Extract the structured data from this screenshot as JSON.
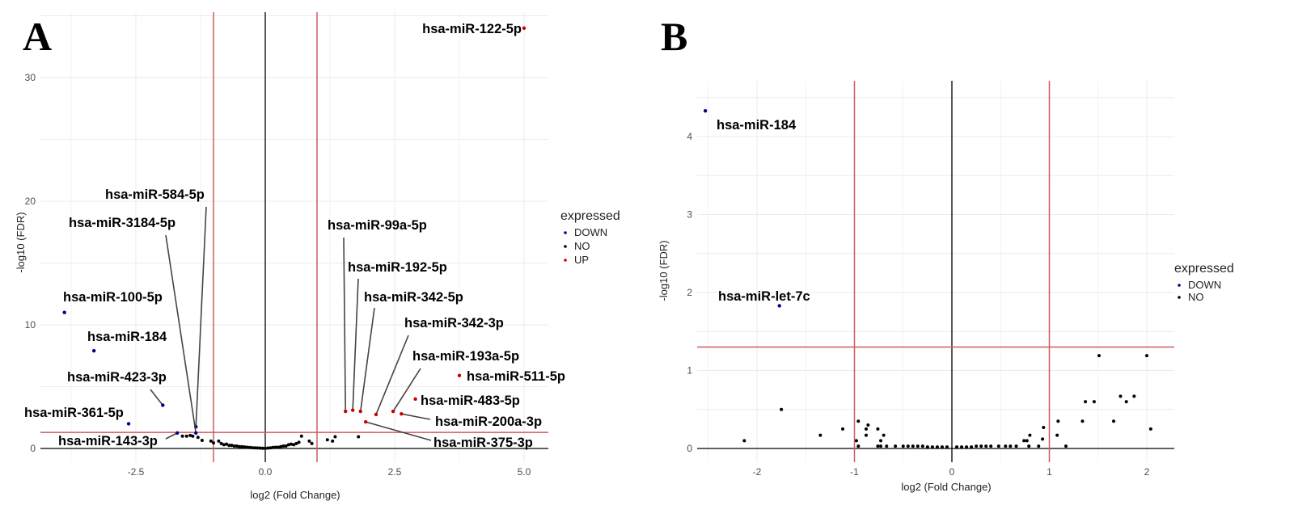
{
  "chart_data": [
    {
      "type": "scatter",
      "panel_label": "A",
      "xlabel": "log2 (Fold Change)",
      "ylabel": "-log10 (FDR)",
      "xlim": [
        -4.3,
        5.4
      ],
      "ylim": [
        -1,
        36
      ],
      "xticks": [
        "-2.5",
        "0.0",
        "2.5",
        "5.0"
      ],
      "yticks": [
        "0",
        "10",
        "20",
        "30"
      ],
      "xtick_values": [
        -2.5,
        0,
        2.5,
        5
      ],
      "ytick_values": [
        0,
        10,
        20,
        30
      ],
      "grid": true,
      "thresholds": {
        "log2fc": [
          -1,
          1
        ],
        "neg_log10_fdr": 1.3
      },
      "legend": {
        "title": "expressed",
        "position": "right",
        "items": [
          "DOWN",
          "NO",
          "UP"
        ]
      },
      "colors": {
        "DOWN": "#00008b",
        "NO": "#000000",
        "UP": "#cc0000",
        "threshold": "#cd5c5c"
      },
      "points": [
        {
          "x": 5.0,
          "y": 34.0,
          "group": "UP",
          "label": "hsa-miR-122-5p"
        },
        {
          "x": -1.34,
          "y": 1.75,
          "group": "DOWN",
          "label": "hsa-miR-584-5p"
        },
        {
          "x": -1.34,
          "y": 1.25,
          "group": "DOWN",
          "label": "hsa-miR-3184-5p"
        },
        {
          "x": -3.88,
          "y": 11.0,
          "group": "DOWN",
          "label": "hsa-miR-100-5p"
        },
        {
          "x": -3.31,
          "y": 7.9,
          "group": "DOWN",
          "label": "hsa-miR-184"
        },
        {
          "x": -1.98,
          "y": 3.5,
          "group": "DOWN",
          "label": "hsa-miR-423-3p"
        },
        {
          "x": -2.64,
          "y": 2.0,
          "group": "DOWN",
          "label": "hsa-miR-361-5p"
        },
        {
          "x": -1.7,
          "y": 1.25,
          "group": "DOWN",
          "label": "hsa-miR-143-3p"
        },
        {
          "x": 1.55,
          "y": 3.0,
          "group": "UP",
          "label": "hsa-miR-99a-5p"
        },
        {
          "x": 1.69,
          "y": 3.1,
          "group": "UP",
          "label": "hsa-miR-192-5p"
        },
        {
          "x": 1.84,
          "y": 3.0,
          "group": "UP",
          "label": "hsa-miR-342-5p"
        },
        {
          "x": 2.14,
          "y": 2.75,
          "group": "UP",
          "label": "hsa-miR-342-3p"
        },
        {
          "x": 2.47,
          "y": 3.0,
          "group": "UP",
          "label": "hsa-miR-193a-5p"
        },
        {
          "x": 3.75,
          "y": 5.9,
          "group": "UP",
          "label": "hsa-miR-511-5p"
        },
        {
          "x": 2.9,
          "y": 4.0,
          "group": "UP",
          "label": "hsa-miR-483-5p"
        },
        {
          "x": 2.63,
          "y": 2.8,
          "group": "UP",
          "label": "hsa-miR-200a-3p"
        },
        {
          "x": 1.94,
          "y": 2.15,
          "group": "UP",
          "label": "hsa-miR-375-3p"
        }
      ],
      "no_points": [
        [
          -1.6,
          1.0
        ],
        [
          -1.52,
          1.0
        ],
        [
          -1.45,
          1.05
        ],
        [
          -1.4,
          1.0
        ],
        [
          -1.3,
          0.9
        ],
        [
          -1.22,
          0.65
        ],
        [
          -1.05,
          0.6
        ],
        [
          -1.0,
          0.45
        ],
        [
          -0.9,
          0.6
        ],
        [
          -0.85,
          0.4
        ],
        [
          -0.8,
          0.3
        ],
        [
          -0.75,
          0.35
        ],
        [
          -0.7,
          0.25
        ],
        [
          -0.65,
          0.25
        ],
        [
          -0.6,
          0.2
        ],
        [
          -0.55,
          0.2
        ],
        [
          -0.5,
          0.15
        ],
        [
          -0.45,
          0.15
        ],
        [
          -0.4,
          0.12
        ],
        [
          -0.35,
          0.1
        ],
        [
          -0.3,
          0.08
        ],
        [
          -0.25,
          0.06
        ],
        [
          -0.2,
          0.05
        ],
        [
          -0.15,
          0.04
        ],
        [
          -0.1,
          0.03
        ],
        [
          -0.05,
          0.02
        ],
        [
          0.0,
          0.02
        ],
        [
          0.05,
          0.03
        ],
        [
          0.1,
          0.05
        ],
        [
          0.15,
          0.08
        ],
        [
          0.2,
          0.1
        ],
        [
          0.25,
          0.1
        ],
        [
          0.3,
          0.15
        ],
        [
          0.35,
          0.2
        ],
        [
          0.4,
          0.2
        ],
        [
          0.45,
          0.3
        ],
        [
          0.5,
          0.35
        ],
        [
          0.55,
          0.3
        ],
        [
          0.6,
          0.4
        ],
        [
          0.65,
          0.5
        ],
        [
          0.7,
          1.0
        ],
        [
          0.85,
          0.6
        ],
        [
          0.9,
          0.4
        ],
        [
          1.2,
          0.7
        ],
        [
          1.3,
          0.6
        ],
        [
          1.35,
          0.95
        ],
        [
          1.8,
          0.95
        ]
      ]
    },
    {
      "type": "scatter",
      "panel_label": "B",
      "xlabel": "log2 (Fold Change)",
      "ylabel": "-log10 (FDR)",
      "xlim": [
        -2.6,
        2.3
      ],
      "ylim": [
        -0.15,
        4.5
      ],
      "xticks": [
        "-2",
        "-1",
        "0",
        "1",
        "2"
      ],
      "yticks": [
        "0",
        "1",
        "2",
        "3",
        "4"
      ],
      "xtick_values": [
        -2,
        -1,
        0,
        1,
        2
      ],
      "ytick_values": [
        0,
        1,
        2,
        3,
        4
      ],
      "grid": true,
      "thresholds": {
        "log2fc": [
          -1,
          1
        ],
        "neg_log10_fdr": 1.3
      },
      "legend": {
        "title": "expressed",
        "position": "right",
        "items": [
          "DOWN",
          "NO"
        ]
      },
      "colors": {
        "DOWN": "#00008b",
        "NO": "#000000",
        "threshold": "#cd5c5c"
      },
      "points": [
        {
          "x": -2.53,
          "y": 4.33,
          "group": "DOWN",
          "label": "hsa-miR-184"
        },
        {
          "x": -1.77,
          "y": 1.83,
          "group": "DOWN",
          "label": "hsa-miR-let-7c"
        }
      ],
      "no_points": [
        [
          -2.13,
          0.1
        ],
        [
          -1.75,
          0.5
        ],
        [
          -1.35,
          0.17
        ],
        [
          -1.12,
          0.25
        ],
        [
          -0.98,
          0.1
        ],
        [
          -0.96,
          0.35
        ],
        [
          -0.96,
          0.03
        ],
        [
          -0.88,
          0.25
        ],
        [
          -0.88,
          0.17
        ],
        [
          -0.86,
          0.3
        ],
        [
          -0.76,
          0.25
        ],
        [
          -0.76,
          0.03
        ],
        [
          -0.73,
          0.03
        ],
        [
          -0.73,
          0.1
        ],
        [
          -0.7,
          0.17
        ],
        [
          -0.67,
          0.03
        ],
        [
          -0.58,
          0.03
        ],
        [
          -0.5,
          0.03
        ],
        [
          -0.45,
          0.03
        ],
        [
          -0.4,
          0.03
        ],
        [
          -0.35,
          0.03
        ],
        [
          -0.3,
          0.03
        ],
        [
          -0.25,
          0.02
        ],
        [
          -0.2,
          0.02
        ],
        [
          -0.15,
          0.02
        ],
        [
          -0.1,
          0.02
        ],
        [
          -0.05,
          0.02
        ],
        [
          0.05,
          0.02
        ],
        [
          0.1,
          0.02
        ],
        [
          0.15,
          0.02
        ],
        [
          0.2,
          0.02
        ],
        [
          0.25,
          0.03
        ],
        [
          0.3,
          0.03
        ],
        [
          0.35,
          0.03
        ],
        [
          0.4,
          0.03
        ],
        [
          0.48,
          0.03
        ],
        [
          0.55,
          0.03
        ],
        [
          0.6,
          0.03
        ],
        [
          0.66,
          0.03
        ],
        [
          0.74,
          0.1
        ],
        [
          0.77,
          0.1
        ],
        [
          0.79,
          0.03
        ],
        [
          0.8,
          0.17
        ],
        [
          0.89,
          0.03
        ],
        [
          0.93,
          0.12
        ],
        [
          0.94,
          0.27
        ],
        [
          1.08,
          0.17
        ],
        [
          1.09,
          0.35
        ],
        [
          1.17,
          0.03
        ],
        [
          1.34,
          0.35
        ],
        [
          1.37,
          0.6
        ],
        [
          1.46,
          0.6
        ],
        [
          1.51,
          1.19
        ],
        [
          1.66,
          0.35
        ],
        [
          1.73,
          0.67
        ],
        [
          1.79,
          0.6
        ],
        [
          1.87,
          0.67
        ],
        [
          2.0,
          1.19
        ],
        [
          2.04,
          0.25
        ]
      ]
    }
  ]
}
